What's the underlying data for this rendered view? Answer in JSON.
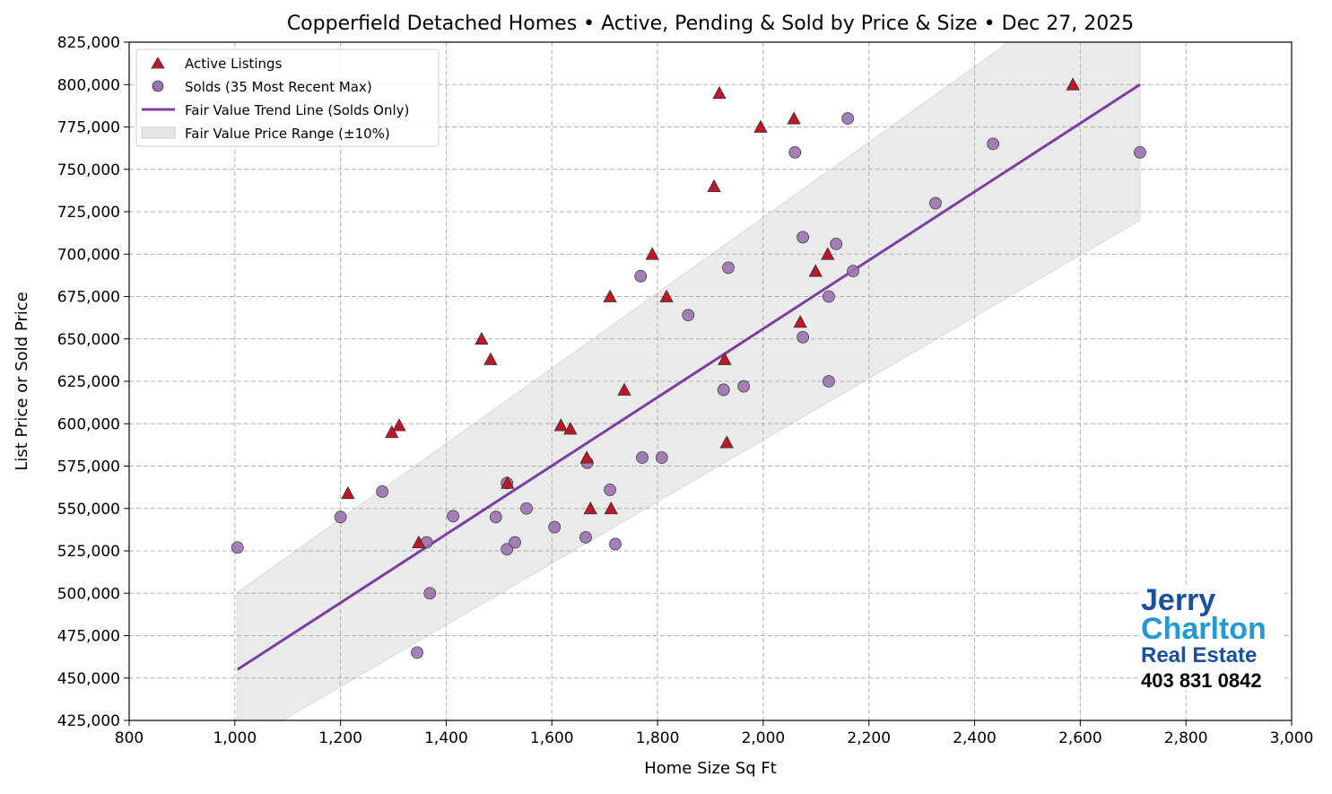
{
  "chart_data": {
    "type": "scatter",
    "title": "Copperfield Detached Homes • Active, Pending & Sold by Price & Size • Dec 27, 2025",
    "xlabel": "Home Size Sq Ft",
    "ylabel": "List Price or Sold Price",
    "xlim": [
      800,
      3000
    ],
    "ylim": [
      425000,
      825000
    ],
    "xticks": [
      800,
      1000,
      1200,
      1400,
      1600,
      1800,
      2000,
      2200,
      2400,
      2600,
      2800,
      3000
    ],
    "xtick_labels": [
      "800",
      "1,000",
      "1,200",
      "1,400",
      "1,600",
      "1,800",
      "2,000",
      "2,200",
      "2,400",
      "2,600",
      "2,800",
      "3,000"
    ],
    "yticks": [
      425000,
      450000,
      475000,
      500000,
      525000,
      550000,
      575000,
      600000,
      625000,
      650000,
      675000,
      700000,
      725000,
      750000,
      775000,
      800000,
      825000
    ],
    "ytick_labels": [
      "425,000",
      "450,000",
      "475,000",
      "500,000",
      "525,000",
      "550,000",
      "575,000",
      "600,000",
      "625,000",
      "650,000",
      "675,000",
      "700,000",
      "725,000",
      "750,000",
      "775,000",
      "800,000",
      "825,000"
    ],
    "grid": true,
    "legend_position": "top-left",
    "legend": [
      "Active Listings",
      "Solds (35 Most Recent Max)",
      "Fair Value Trend Line (Solds Only)",
      "Fair Value Price Range (±10%)"
    ],
    "colors": {
      "active": "#c0182a",
      "sold": "#9b72b0",
      "trend": "#7b3fa0",
      "range": "#e6e6e6"
    },
    "series": [
      {
        "name": "Active Listings",
        "marker": "triangle",
        "points": [
          [
            1917,
            795000
          ],
          [
            2586,
            800000
          ],
          [
            1995,
            775000
          ],
          [
            2058,
            780000
          ],
          [
            1907,
            740000
          ],
          [
            1790,
            700000
          ],
          [
            2122,
            700000
          ],
          [
            2099,
            690000
          ],
          [
            1710,
            675000
          ],
          [
            1817,
            675000
          ],
          [
            2070,
            660000
          ],
          [
            1467,
            650000
          ],
          [
            1484,
            638000
          ],
          [
            1927,
            638000
          ],
          [
            1737,
            620000
          ],
          [
            1311,
            599000
          ],
          [
            1297,
            595000
          ],
          [
            1617,
            599000
          ],
          [
            1635,
            597000
          ],
          [
            1931,
            589000
          ],
          [
            1214,
            559000
          ],
          [
            1666,
            580000
          ],
          [
            1516,
            565000
          ],
          [
            1673,
            550000
          ],
          [
            1712,
            550000
          ],
          [
            1348,
            530000
          ]
        ]
      },
      {
        "name": "Solds (35 Most Recent Max)",
        "marker": "circle",
        "points": [
          [
            1005,
            527000
          ],
          [
            1200,
            545000
          ],
          [
            1279,
            560000
          ],
          [
            1363,
            530000
          ],
          [
            1369,
            500000
          ],
          [
            1345,
            465000
          ],
          [
            1413,
            545500
          ],
          [
            1494,
            545000
          ],
          [
            1515,
            565000
          ],
          [
            1515,
            526000
          ],
          [
            1530,
            530000
          ],
          [
            1552,
            550000
          ],
          [
            1605,
            539000
          ],
          [
            1664,
            533000
          ],
          [
            1667,
            577000
          ],
          [
            1720,
            529000
          ],
          [
            1710,
            561000
          ],
          [
            1771,
            580000
          ],
          [
            1808,
            580000
          ],
          [
            1768,
            687000
          ],
          [
            1858,
            664000
          ],
          [
            1934,
            692000
          ],
          [
            1925,
            620000
          ],
          [
            1963,
            622000
          ],
          [
            2060,
            760000
          ],
          [
            2160,
            780000
          ],
          [
            2075,
            710000
          ],
          [
            2138,
            706000
          ],
          [
            2170,
            690000
          ],
          [
            2124,
            675000
          ],
          [
            2075,
            651000
          ],
          [
            2124,
            625000
          ],
          [
            2326,
            730000
          ],
          [
            2435,
            765000
          ],
          [
            2713,
            760000
          ]
        ]
      },
      {
        "name": "Fair Value Trend Line (Solds Only)",
        "type": "line",
        "points": [
          [
            1005,
            455000
          ],
          [
            2713,
            800000
          ]
        ]
      },
      {
        "name": "Fair Value Price Range (±10%)",
        "type": "band",
        "range_pct": 10
      }
    ]
  },
  "logo": {
    "line1": "Jerry",
    "line2": "Charlton",
    "line3": "Real Estate",
    "phone": "403 831 0842"
  }
}
